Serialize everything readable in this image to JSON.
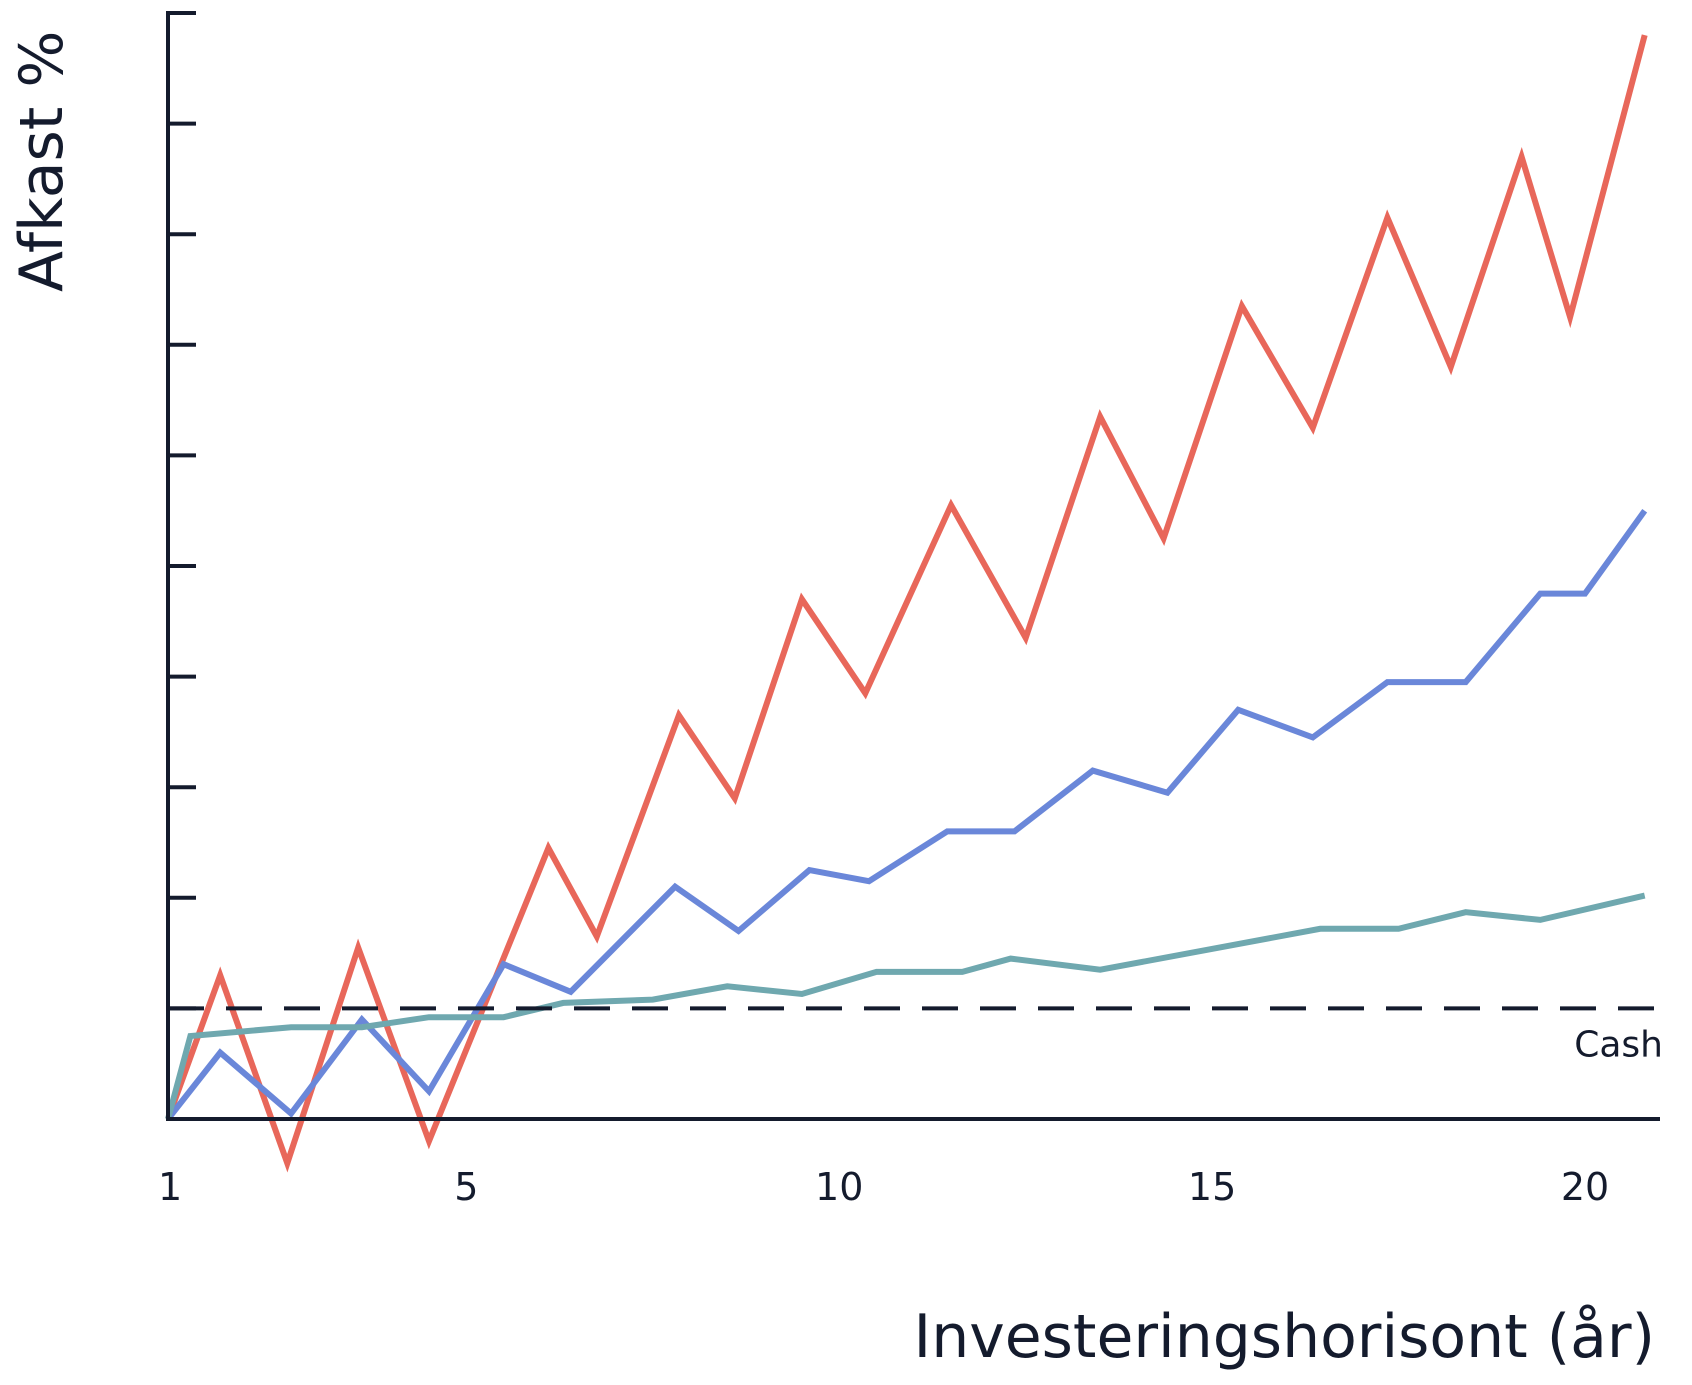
{
  "chart_data": {
    "type": "line",
    "xlabel": "Investeringshorisont (år)",
    "ylabel": "Afkast %",
    "xlim": [
      1,
      20
    ],
    "ylim": [
      0,
      10
    ],
    "x_ticks": [
      1,
      5,
      10,
      15,
      20
    ],
    "y_tick_count": 11,
    "y_tick_labels_shown": false,
    "grid": false,
    "legend": "none",
    "reference_line": {
      "label": "Cash",
      "y": 1,
      "style": "dashed",
      "color": "#141b2d"
    },
    "series": [
      {
        "color": "#e8675a",
        "points": [
          [
            1,
            0.0
          ],
          [
            1.7,
            1.3
          ],
          [
            2.6,
            -0.4
          ],
          [
            3.55,
            1.55
          ],
          [
            4.5,
            -0.2
          ],
          [
            6.1,
            2.45
          ],
          [
            6.75,
            1.65
          ],
          [
            7.85,
            3.65
          ],
          [
            8.6,
            2.9
          ],
          [
            9.5,
            4.7
          ],
          [
            10.35,
            3.85
          ],
          [
            11.5,
            5.55
          ],
          [
            12.5,
            4.35
          ],
          [
            13.5,
            6.35
          ],
          [
            14.35,
            5.25
          ],
          [
            15.4,
            7.35
          ],
          [
            16.35,
            6.25
          ],
          [
            17.35,
            8.15
          ],
          [
            18.2,
            6.8
          ],
          [
            19.15,
            8.7
          ],
          [
            19.8,
            7.25
          ],
          [
            20.8,
            9.8
          ]
        ]
      },
      {
        "color": "#6a87d9",
        "points": [
          [
            1,
            0.0
          ],
          [
            1.7,
            0.6
          ],
          [
            2.65,
            0.05
          ],
          [
            3.6,
            0.9
          ],
          [
            4.5,
            0.25
          ],
          [
            5.5,
            1.4
          ],
          [
            6.4,
            1.15
          ],
          [
            7.8,
            2.1
          ],
          [
            8.65,
            1.7
          ],
          [
            9.6,
            2.25
          ],
          [
            10.4,
            2.15
          ],
          [
            11.45,
            2.6
          ],
          [
            12.35,
            2.6
          ],
          [
            13.4,
            3.15
          ],
          [
            14.4,
            2.95
          ],
          [
            15.35,
            3.7
          ],
          [
            16.35,
            3.45
          ],
          [
            17.35,
            3.95
          ],
          [
            18.4,
            3.95
          ],
          [
            19.4,
            4.75
          ],
          [
            20.0,
            4.75
          ],
          [
            20.8,
            5.5
          ]
        ]
      },
      {
        "color": "#6fa8af",
        "points": [
          [
            1,
            0.0
          ],
          [
            1.3,
            0.75
          ],
          [
            2.65,
            0.83
          ],
          [
            3.6,
            0.83
          ],
          [
            4.5,
            0.92
          ],
          [
            5.5,
            0.92
          ],
          [
            6.3,
            1.05
          ],
          [
            7.5,
            1.08
          ],
          [
            8.5,
            1.2
          ],
          [
            9.5,
            1.13
          ],
          [
            10.5,
            1.33
          ],
          [
            11.65,
            1.33
          ],
          [
            12.3,
            1.45
          ],
          [
            13.5,
            1.35
          ],
          [
            16.45,
            1.72
          ],
          [
            17.5,
            1.72
          ],
          [
            18.4,
            1.87
          ],
          [
            19.4,
            1.8
          ],
          [
            20.8,
            2.02
          ]
        ]
      }
    ]
  }
}
